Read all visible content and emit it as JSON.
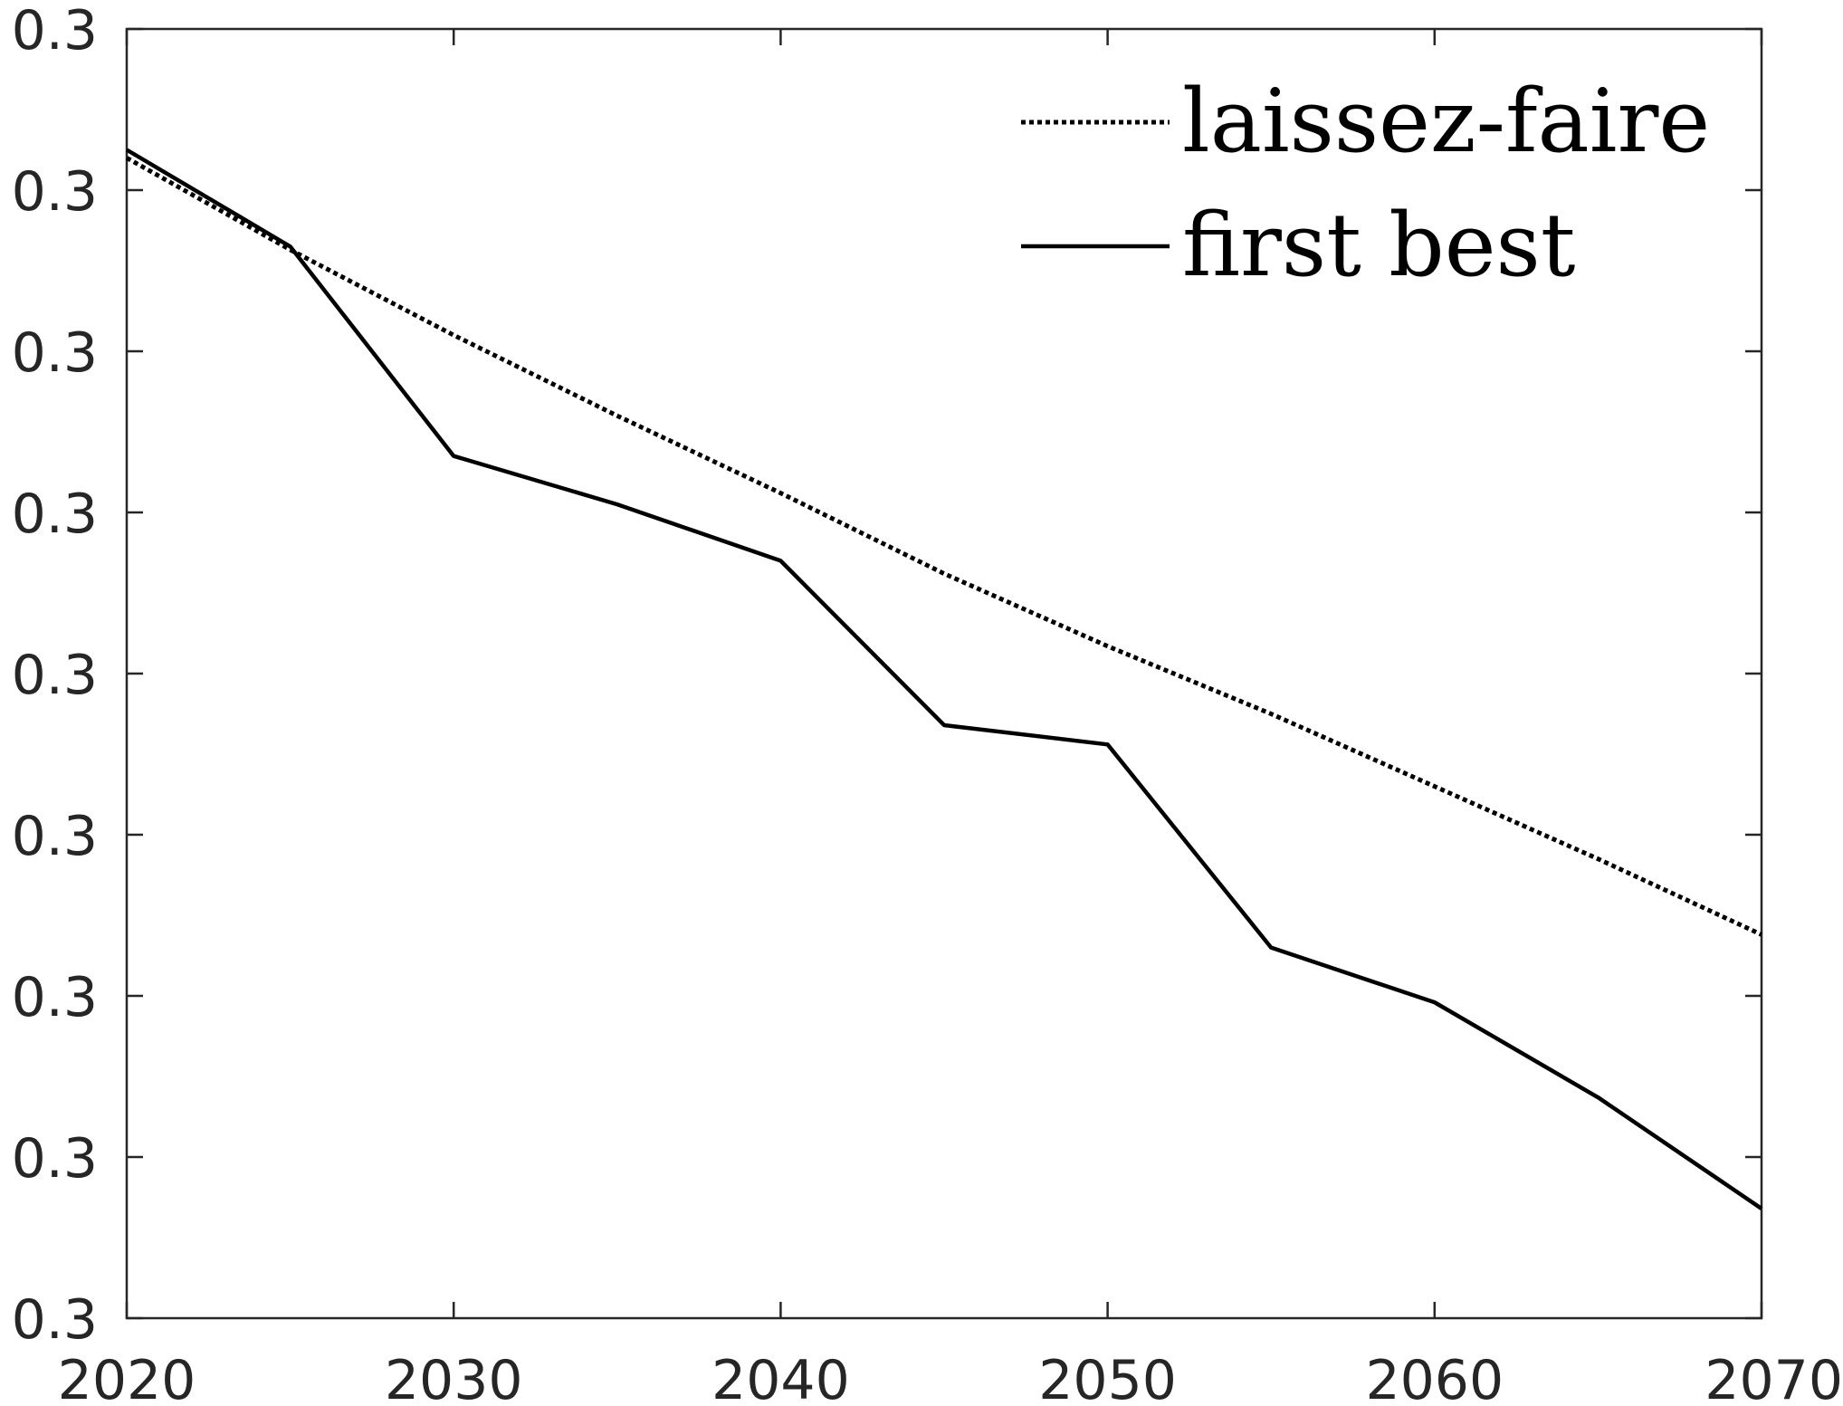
{
  "chart_data": {
    "type": "line",
    "title": "",
    "xlabel": "",
    "ylabel": "",
    "x": [
      2020,
      2025,
      2030,
      2035,
      2040,
      2045,
      2050,
      2055,
      2060,
      2065,
      2070
    ],
    "xlim": [
      2020,
      2070
    ],
    "ylim": [
      0,
      8
    ],
    "x_ticks": [
      "2020",
      "2030",
      "2040",
      "2050",
      "2060",
      "2070"
    ],
    "y_ticks": [
      "0.3",
      "0.3",
      "0.3",
      "0.3",
      "0.3",
      "0.3",
      "0.3",
      "0.3",
      "0.3"
    ],
    "grid": false,
    "legend_position": "top-right",
    "series": [
      {
        "name": "laissez-faire",
        "line_style": "dotted",
        "color": "#000000",
        "values": [
          7.2,
          6.63,
          6.1,
          5.6,
          5.12,
          4.62,
          4.17,
          3.75,
          3.3,
          2.85,
          2.38
        ]
      },
      {
        "name": "first best",
        "line_style": "solid",
        "color": "#000000",
        "values": [
          7.25,
          6.65,
          5.35,
          5.05,
          4.7,
          3.68,
          3.56,
          2.3,
          1.96,
          1.37,
          0.68
        ]
      }
    ]
  }
}
